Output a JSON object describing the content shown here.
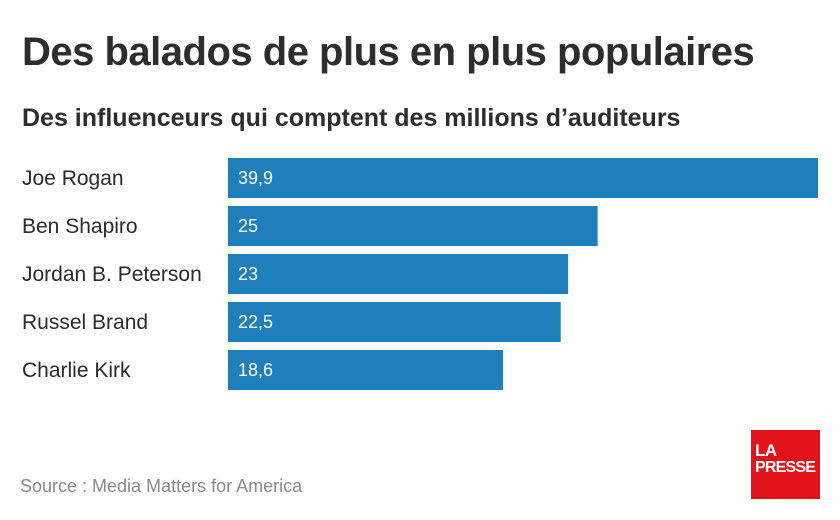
{
  "header": {
    "title": "Des balados de plus en plus populaires",
    "subtitle": "Des influenceurs qui comptent des millions d’auditeurs"
  },
  "footer": {
    "source": "Source : Media Matters for America"
  },
  "logo": {
    "line1": "LA",
    "line2": "PRESSE",
    "color": "#e3131b"
  },
  "colors": {
    "bar": "#1f7fbb",
    "value_text": "#ffffff"
  },
  "chart_data": {
    "type": "bar",
    "orientation": "horizontal",
    "title": "Des balados de plus en plus populaires",
    "subtitle": "Des influenceurs qui comptent des millions d’auditeurs",
    "categories": [
      "Joe Rogan",
      "Ben Shapiro",
      "Jordan B. Peterson",
      "Russel Brand",
      "Charlie Kirk"
    ],
    "values": [
      39.9,
      25,
      23,
      22.5,
      18.6
    ],
    "value_labels": [
      "39,9",
      "25",
      "23",
      "22,5",
      "18,6"
    ],
    "xlim": [
      0,
      39.9
    ],
    "grid": false,
    "legend": "none"
  }
}
